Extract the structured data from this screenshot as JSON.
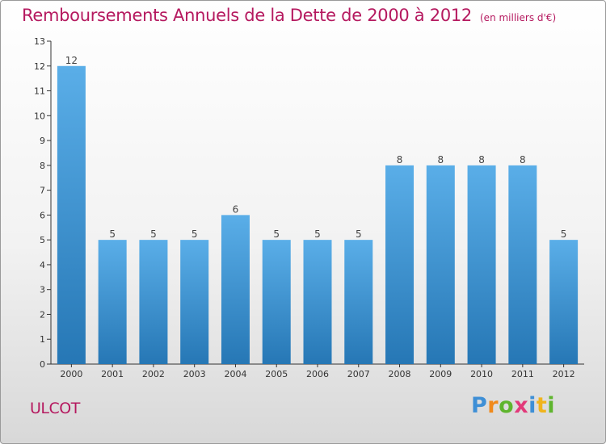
{
  "chart_data": {
    "type": "bar",
    "title": "Remboursements Annuels de la Dette de 2000 à 2012",
    "subtitle": "(en milliers d'€)",
    "categories": [
      "2000",
      "2001",
      "2002",
      "2003",
      "2004",
      "2005",
      "2006",
      "2007",
      "2008",
      "2009",
      "2010",
      "2011",
      "2012"
    ],
    "values": [
      12,
      5,
      5,
      5,
      6,
      5,
      5,
      5,
      8,
      8,
      8,
      8,
      5
    ],
    "data_labels": [
      "12",
      "5",
      "5",
      "5",
      "6",
      "5",
      "5",
      "5",
      "8",
      "8",
      "8",
      "8",
      "5"
    ],
    "ylim": [
      0,
      13
    ],
    "yticks": [
      "0",
      "1",
      "2",
      "3",
      "4",
      "5",
      "6",
      "7",
      "8",
      "9",
      "10",
      "11",
      "12",
      "13"
    ],
    "grid": false,
    "bar_color_top": "#5aaee8",
    "bar_color_bottom": "#2677b5"
  },
  "footer": {
    "commune": "ULCOT",
    "logo_letters": [
      "P",
      "r",
      "o",
      "x",
      "i",
      "t",
      "i"
    ]
  },
  "colors": {
    "title": "#b5195f",
    "axis": "#333333"
  }
}
